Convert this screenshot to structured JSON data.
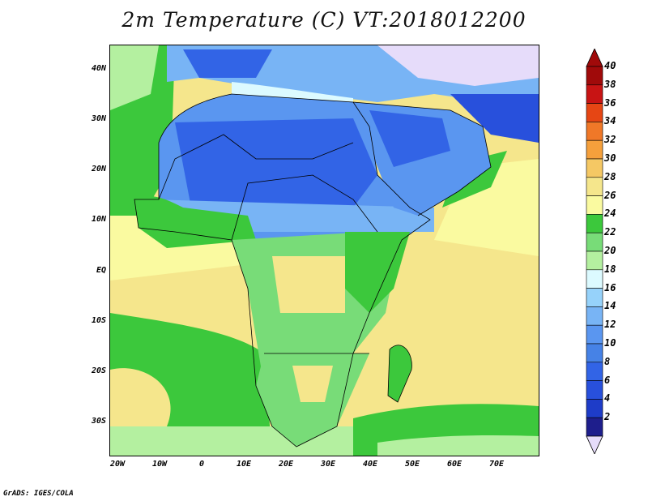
{
  "title": "2m Temperature (C) VT:2018012200",
  "credit": "GrADS: IGES/COLA",
  "map": {
    "region": "Africa and Middle East",
    "lon_range": [
      -23,
      80
    ],
    "lat_range": [
      -37,
      45
    ],
    "lat_labels": [
      "40N",
      "30N",
      "20N",
      "10N",
      "EQ",
      "10S",
      "20S",
      "30S"
    ],
    "lon_labels": [
      "20W",
      "10W",
      "0",
      "10E",
      "20E",
      "30E",
      "40E",
      "50E",
      "60E",
      "70E"
    ]
  },
  "colorbar": {
    "levels": [
      "2",
      "4",
      "6",
      "8",
      "10",
      "12",
      "14",
      "16",
      "18",
      "20",
      "22",
      "24",
      "26",
      "28",
      "30",
      "32",
      "34",
      "36",
      "38",
      "40"
    ],
    "colors": [
      "#1e1e8c",
      "#1e3cc8",
      "#2850dc",
      "#3264e6",
      "#4682e6",
      "#5a96f0",
      "#78b4f5",
      "#96d2fa",
      "#dcfaff",
      "#b4f0a0",
      "#78dc78",
      "#3cc83c",
      "#fafaa0",
      "#f5e68c",
      "#f5c864",
      "#f5a03c",
      "#f07828",
      "#e64614",
      "#c81414",
      "#a00a0a"
    ],
    "under_color": "#e6dcfa",
    "over_color": "#a00a0a"
  }
}
